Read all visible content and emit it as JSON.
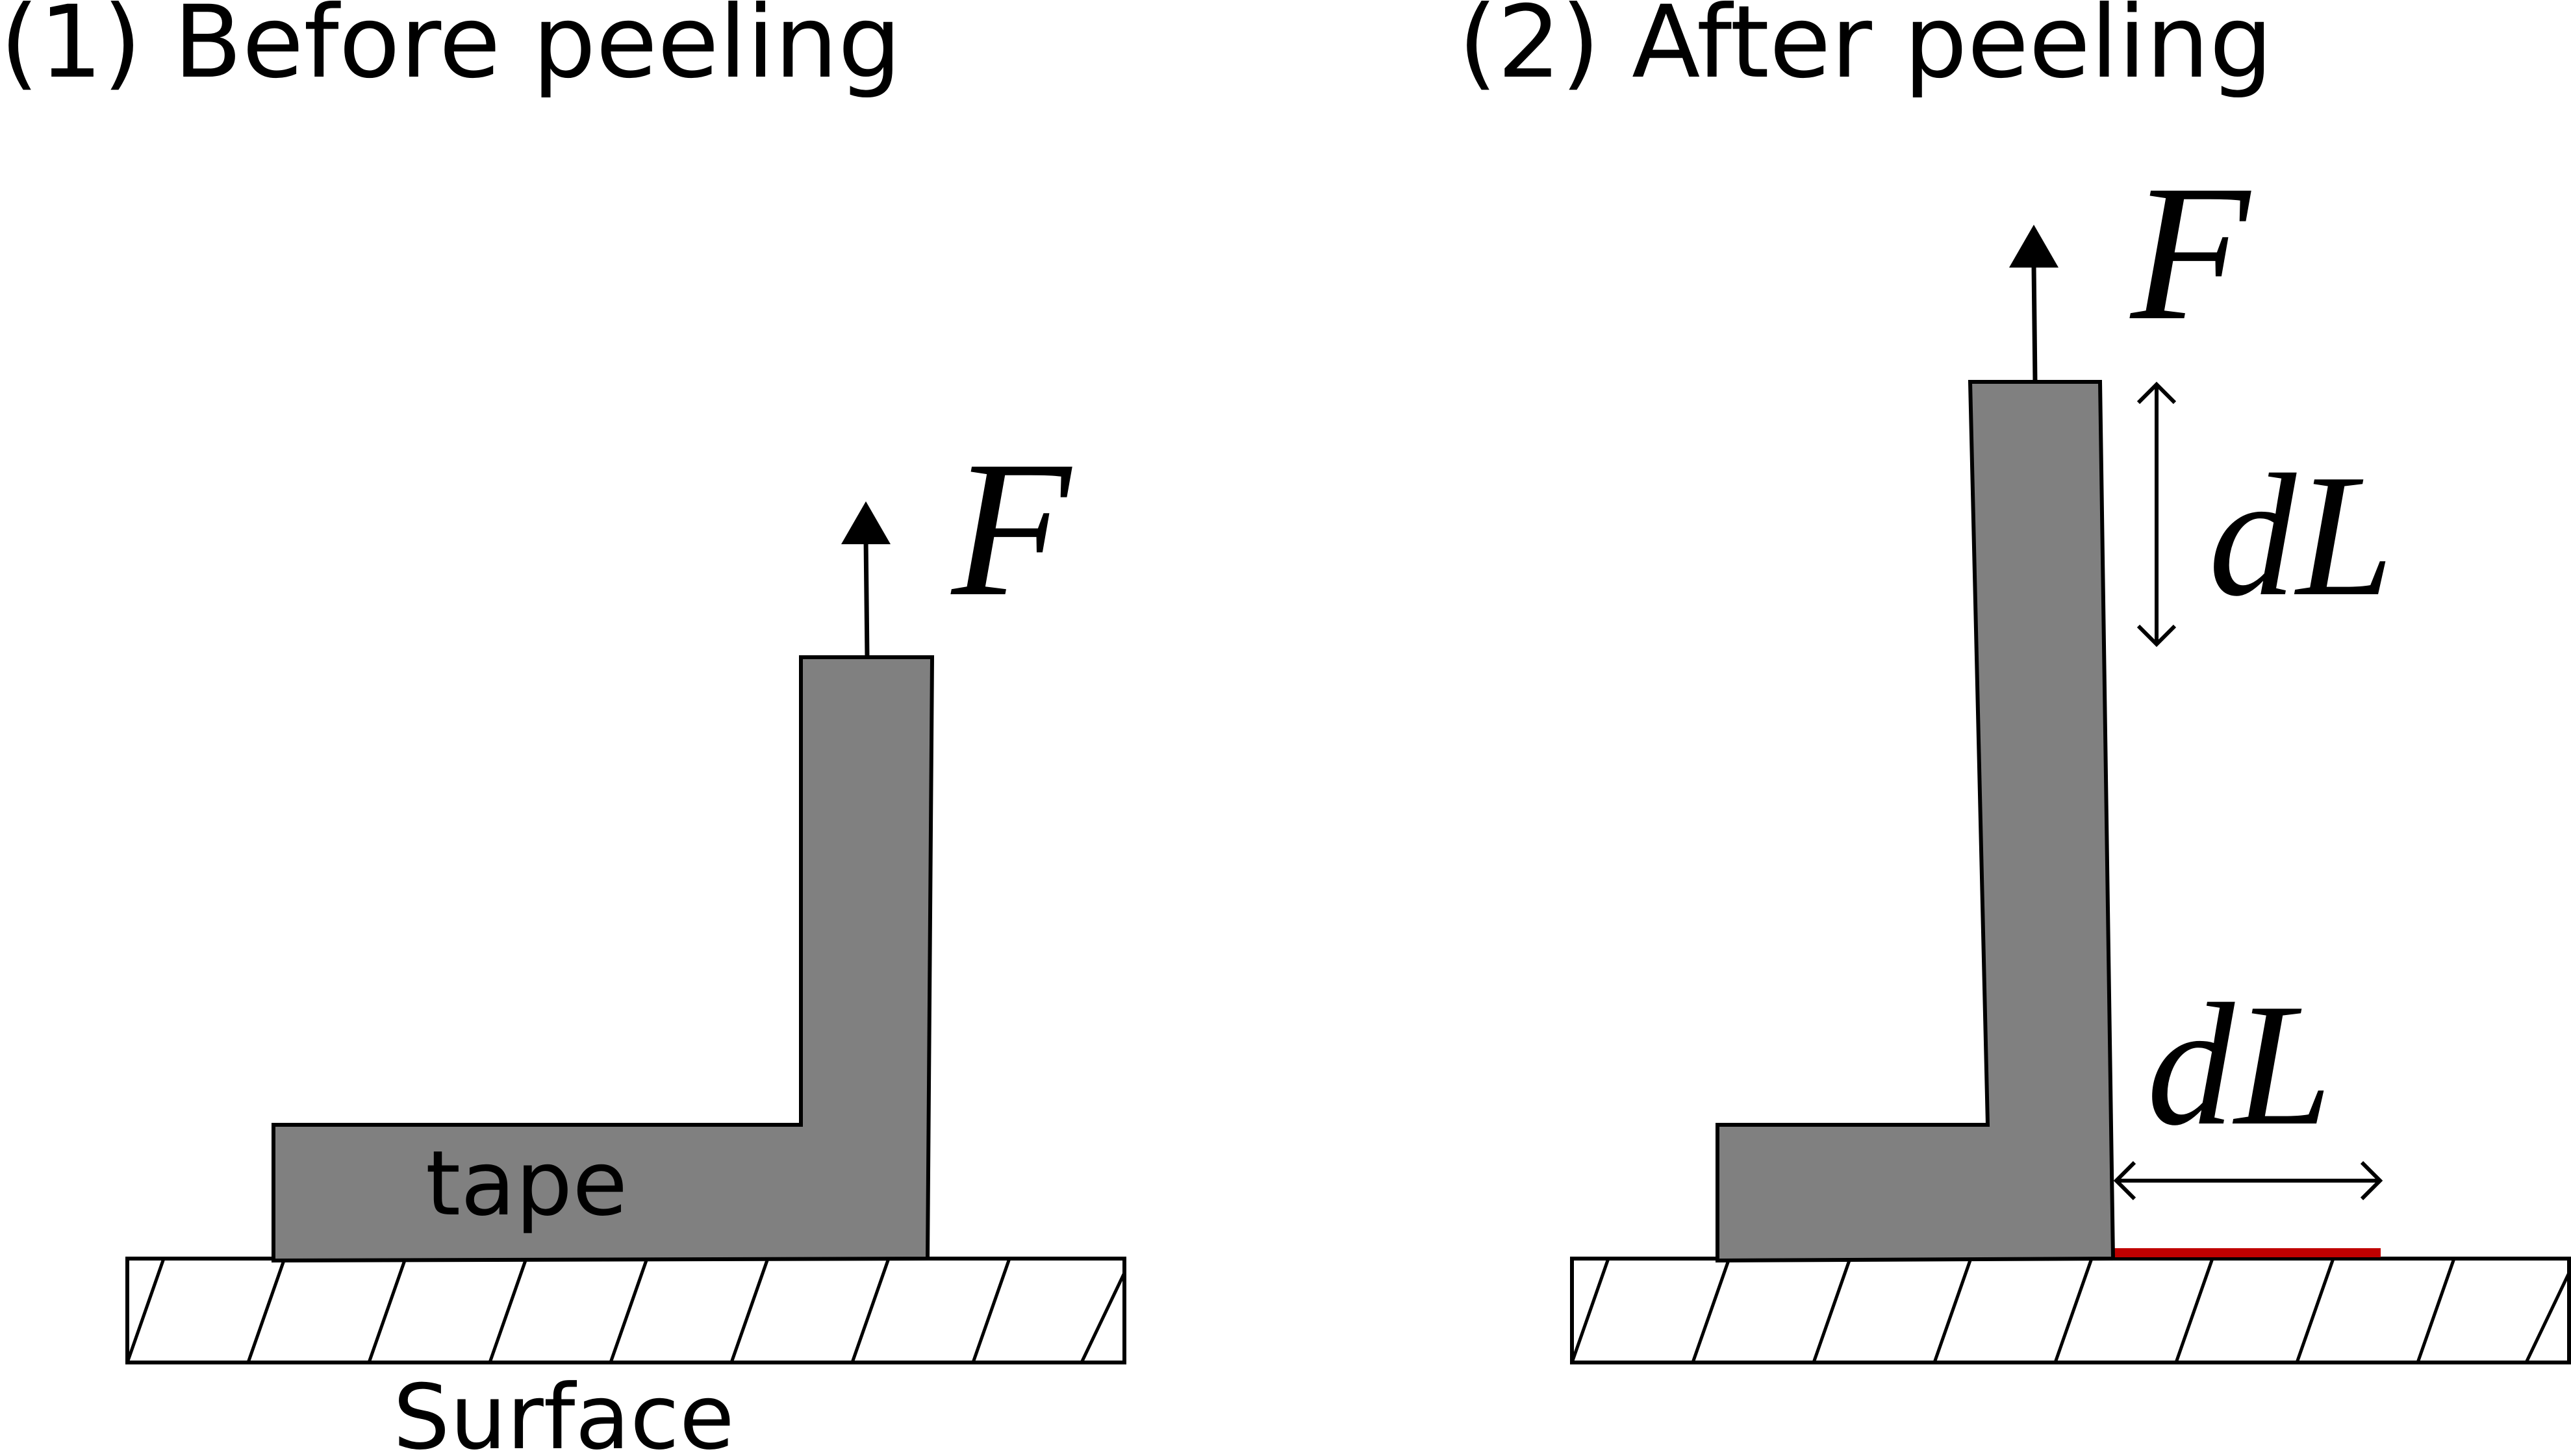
{
  "panels": {
    "before": {
      "title": "(1) Before peeling",
      "force_label": "F",
      "tape_label": "tape",
      "surface_label": "Surface"
    },
    "after": {
      "title": "(2) After peeling",
      "force_label": "F",
      "vertical_extension_label": "dL",
      "horizontal_extension_label": "dL"
    }
  },
  "colors": {
    "tape": "#808080",
    "outline": "#000000",
    "surface_fill": "#ffffff",
    "peeled_marker": "#c00000"
  },
  "icons": {
    "force_arrow": "arrow-up-icon",
    "dimension_arrow": "double-headed-arrow-icon"
  }
}
